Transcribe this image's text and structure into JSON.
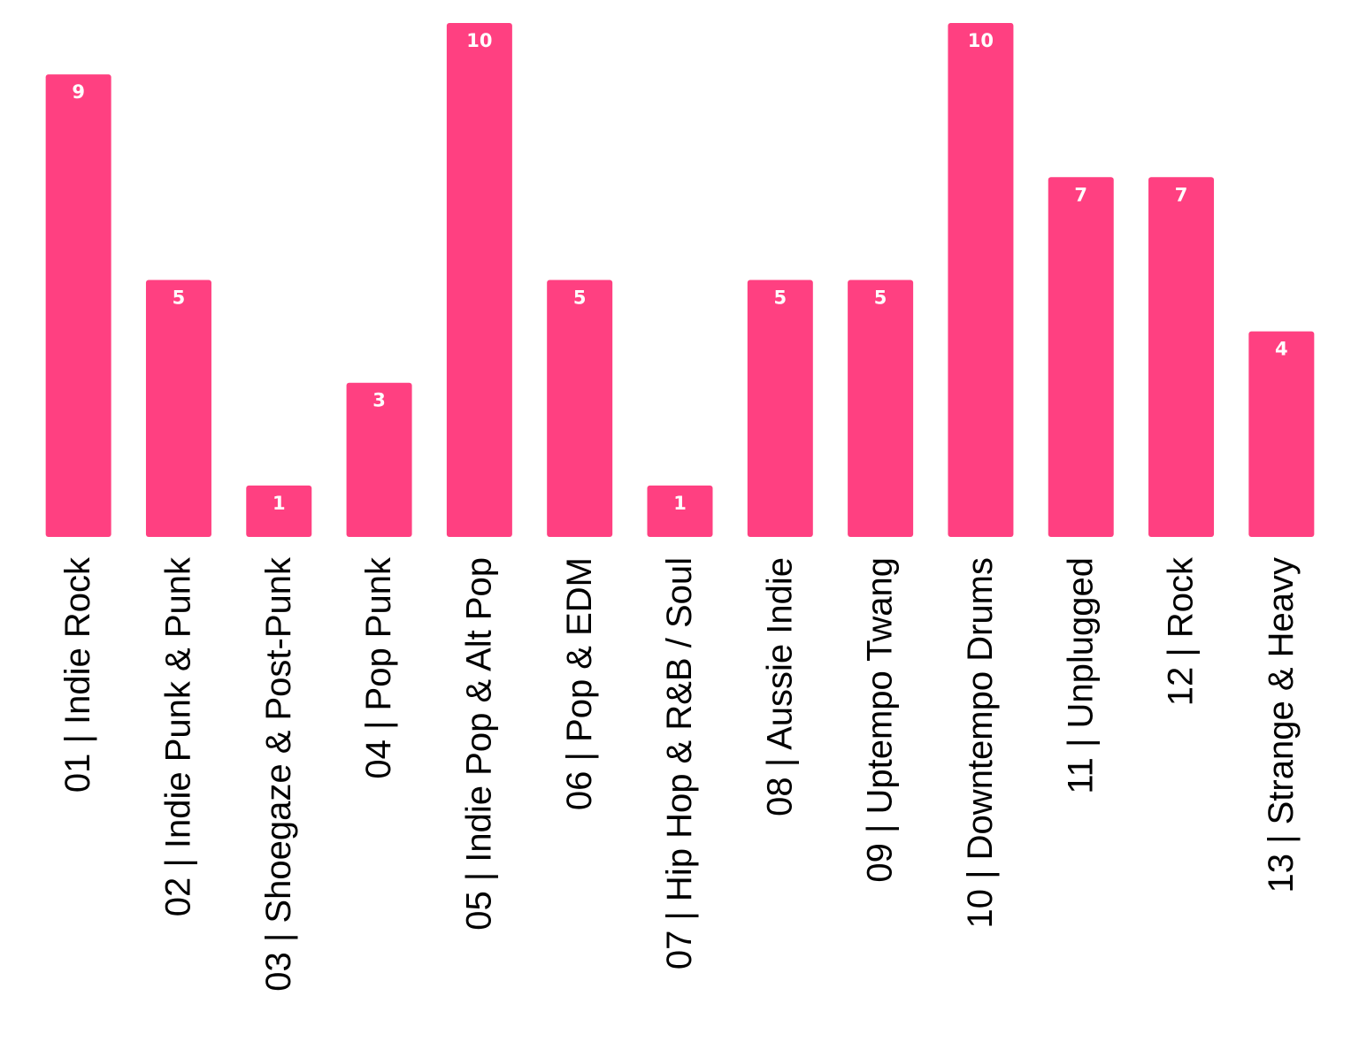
{
  "chart_data": {
    "type": "bar",
    "categories": [
      "01 | Indie Rock",
      "02 | Indie Punk & Punk",
      "03 | Shoegaze & Post-Punk",
      "04 | Pop Punk",
      "05 | Indie Pop & Alt Pop",
      "06 | Pop & EDM",
      "07 | Hip Hop & R&B / Soul",
      "08 | Aussie Indie",
      "09 | Uptempo Twang",
      "10 | Downtempo Drums",
      "11 | Unplugged",
      "12 | Rock",
      "13 | Strange & Heavy"
    ],
    "values": [
      9,
      5,
      1,
      3,
      10,
      5,
      1,
      5,
      5,
      10,
      7,
      7,
      4
    ],
    "color": "#ff4081",
    "ylim": [
      0,
      10
    ]
  }
}
